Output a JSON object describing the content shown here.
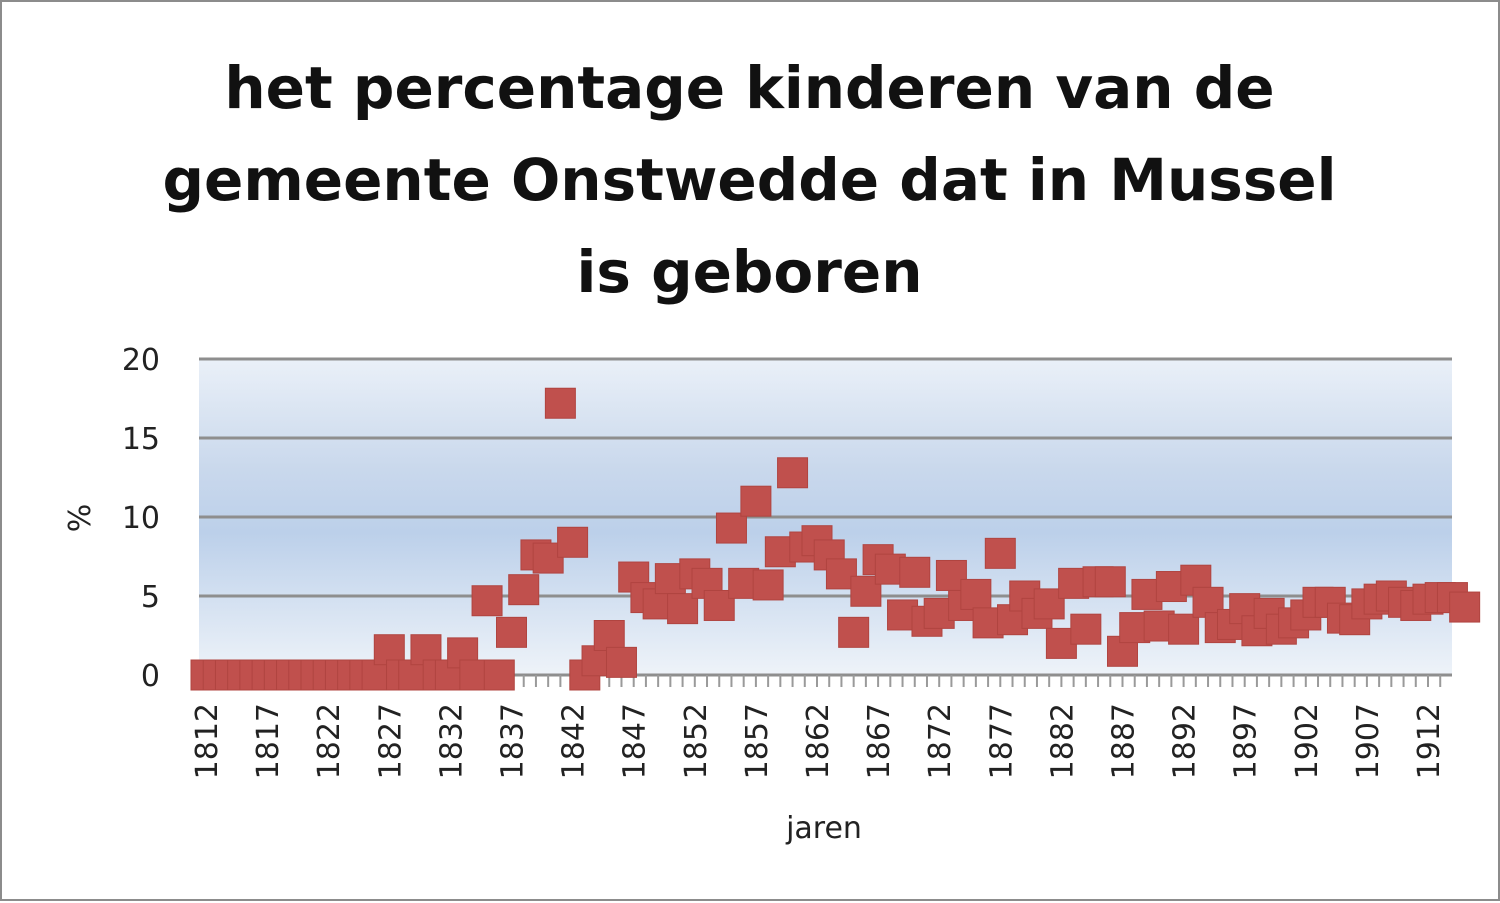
{
  "chart_data": {
    "type": "scatter",
    "title": "het percentage kinderen van de gemeente Onstwedde dat in Mussel is geboren",
    "xlabel": "jaren",
    "ylabel": "%",
    "ylim": [
      0,
      20
    ],
    "yticks": [
      0,
      5,
      10,
      15,
      20
    ],
    "xlim": [
      1812,
      1914
    ],
    "xticks": [
      "1812",
      "1817",
      "1822",
      "1827",
      "1832",
      "1837",
      "1842",
      "1847",
      "1852",
      "1857",
      "1862",
      "1867",
      "1872",
      "1877",
      "1882",
      "1887",
      "1892",
      "1897",
      "1902",
      "1907",
      "1912"
    ],
    "grid": true,
    "legend": "none",
    "marker_color": "#c0504d",
    "marker": "square",
    "points": [
      [
        1812,
        0
      ],
      [
        1813,
        0
      ],
      [
        1814,
        0
      ],
      [
        1815,
        0
      ],
      [
        1816,
        0
      ],
      [
        1817,
        0
      ],
      [
        1818,
        0
      ],
      [
        1819,
        0
      ],
      [
        1820,
        0
      ],
      [
        1821,
        0
      ],
      [
        1822,
        0
      ],
      [
        1823,
        0
      ],
      [
        1824,
        0
      ],
      [
        1825,
        0
      ],
      [
        1826,
        0
      ],
      [
        1827,
        1.6
      ],
      [
        1828,
        0
      ],
      [
        1829,
        0
      ],
      [
        1830,
        1.6
      ],
      [
        1831,
        0
      ],
      [
        1832,
        0
      ],
      [
        1833,
        1.4
      ],
      [
        1834,
        0
      ],
      [
        1835,
        4.7
      ],
      [
        1836,
        0
      ],
      [
        1837,
        2.7
      ],
      [
        1838,
        5.4
      ],
      [
        1839,
        7.6
      ],
      [
        1840,
        7.4
      ],
      [
        1841,
        17.2
      ],
      [
        1842,
        8.4
      ],
      [
        1843,
        0
      ],
      [
        1844,
        0.9
      ],
      [
        1845,
        2.5
      ],
      [
        1846,
        0.8
      ],
      [
        1847,
        6.2
      ],
      [
        1848,
        4.9
      ],
      [
        1849,
        4.5
      ],
      [
        1850,
        6.1
      ],
      [
        1851,
        4.2
      ],
      [
        1852,
        6.4
      ],
      [
        1853,
        5.8
      ],
      [
        1854,
        4.4
      ],
      [
        1855,
        9.3
      ],
      [
        1856,
        5.8
      ],
      [
        1857,
        11.0
      ],
      [
        1858,
        5.7
      ],
      [
        1859,
        7.8
      ],
      [
        1860,
        12.8
      ],
      [
        1861,
        8.1
      ],
      [
        1862,
        8.5
      ],
      [
        1863,
        7.6
      ],
      [
        1864,
        6.4
      ],
      [
        1865,
        2.7
      ],
      [
        1866,
        5.3
      ],
      [
        1867,
        7.3
      ],
      [
        1868,
        6.7
      ],
      [
        1869,
        3.8
      ],
      [
        1870,
        6.5
      ],
      [
        1871,
        3.4
      ],
      [
        1872,
        3.9
      ],
      [
        1873,
        6.3
      ],
      [
        1874,
        4.4
      ],
      [
        1875,
        5.1
      ],
      [
        1876,
        3.3
      ],
      [
        1877,
        7.7
      ],
      [
        1878,
        3.5
      ],
      [
        1879,
        5.0
      ],
      [
        1880,
        3.9
      ],
      [
        1881,
        4.5
      ],
      [
        1882,
        2.0
      ],
      [
        1883,
        5.8
      ],
      [
        1884,
        2.9
      ],
      [
        1885,
        5.9
      ],
      [
        1886,
        5.9
      ],
      [
        1887,
        1.5
      ],
      [
        1888,
        3.0
      ],
      [
        1889,
        5.1
      ],
      [
        1890,
        3.1
      ],
      [
        1891,
        5.6
      ],
      [
        1892,
        2.9
      ],
      [
        1893,
        6.0
      ],
      [
        1894,
        4.6
      ],
      [
        1895,
        3.0
      ],
      [
        1896,
        3.2
      ],
      [
        1897,
        4.2
      ],
      [
        1898,
        2.8
      ],
      [
        1899,
        3.9
      ],
      [
        1900,
        2.9
      ],
      [
        1901,
        3.3
      ],
      [
        1902,
        3.8
      ],
      [
        1903,
        4.6
      ],
      [
        1904,
        4.6
      ],
      [
        1905,
        3.6
      ],
      [
        1906,
        3.5
      ],
      [
        1907,
        4.5
      ],
      [
        1908,
        4.8
      ],
      [
        1909,
        5.0
      ],
      [
        1910,
        4.6
      ],
      [
        1911,
        4.4
      ],
      [
        1912,
        4.8
      ],
      [
        1913,
        4.9
      ],
      [
        1914,
        4.9
      ],
      [
        1915,
        4.3
      ]
    ]
  }
}
